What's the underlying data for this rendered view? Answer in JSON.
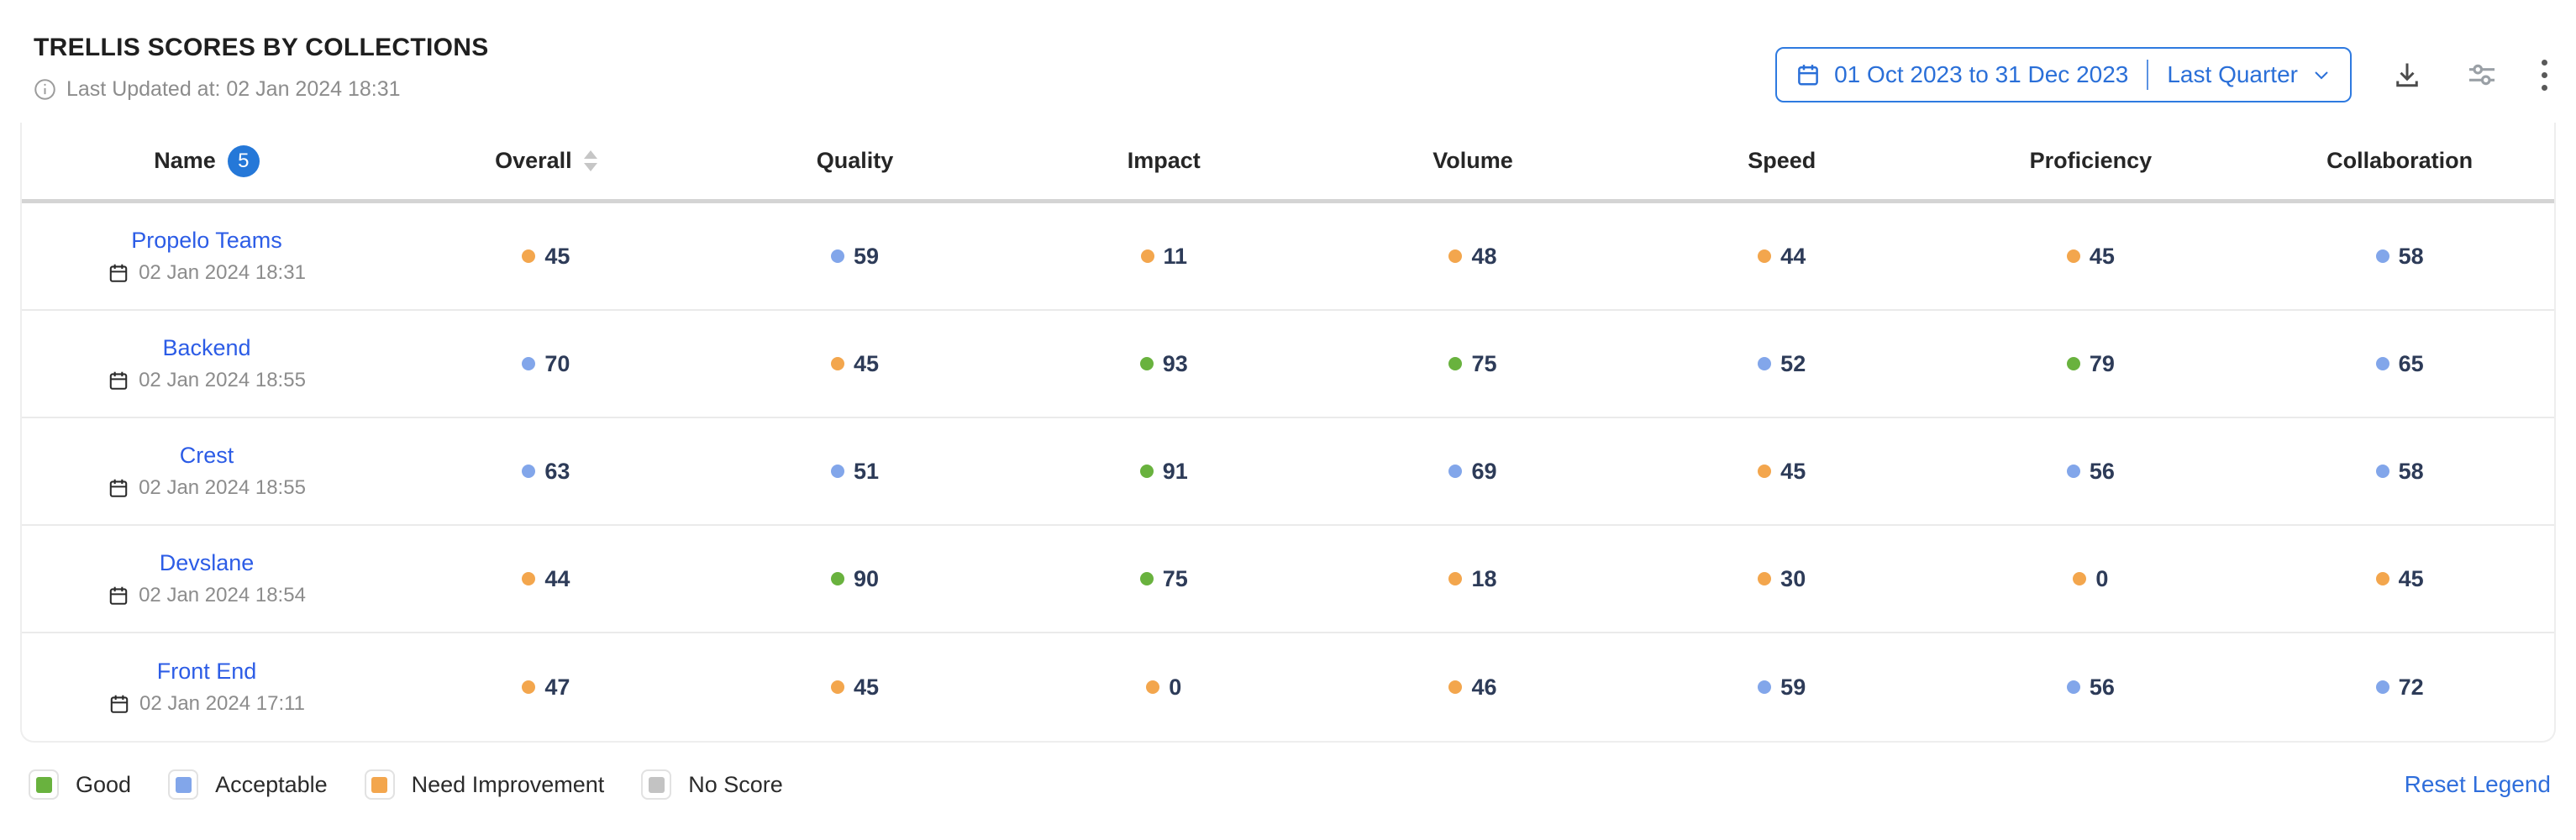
{
  "header": {
    "title": "TRELLIS SCORES BY COLLECTIONS",
    "last_updated": "Last Updated at: 02 Jan 2024 18:31",
    "date_range": {
      "range_text": "01 Oct 2023 to 31 Dec 2023",
      "preset_label": "Last Quarter"
    }
  },
  "table": {
    "columns": [
      "Name",
      "Overall",
      "Quality",
      "Impact",
      "Volume",
      "Speed",
      "Proficiency",
      "Collaboration"
    ],
    "name_count_badge": "5",
    "rows": [
      {
        "name": "Propelo Teams",
        "date": "02 Jan 2024 18:31",
        "scores": [
          {
            "value": 45,
            "status": "need_improvement"
          },
          {
            "value": 59,
            "status": "acceptable"
          },
          {
            "value": 11,
            "status": "need_improvement"
          },
          {
            "value": 48,
            "status": "need_improvement"
          },
          {
            "value": 44,
            "status": "need_improvement"
          },
          {
            "value": 45,
            "status": "need_improvement"
          },
          {
            "value": 58,
            "status": "acceptable"
          }
        ]
      },
      {
        "name": "Backend",
        "date": "02 Jan 2024 18:55",
        "scores": [
          {
            "value": 70,
            "status": "acceptable"
          },
          {
            "value": 45,
            "status": "need_improvement"
          },
          {
            "value": 93,
            "status": "good"
          },
          {
            "value": 75,
            "status": "good"
          },
          {
            "value": 52,
            "status": "acceptable"
          },
          {
            "value": 79,
            "status": "good"
          },
          {
            "value": 65,
            "status": "acceptable"
          }
        ]
      },
      {
        "name": "Crest",
        "date": "02 Jan 2024 18:55",
        "scores": [
          {
            "value": 63,
            "status": "acceptable"
          },
          {
            "value": 51,
            "status": "acceptable"
          },
          {
            "value": 91,
            "status": "good"
          },
          {
            "value": 69,
            "status": "acceptable"
          },
          {
            "value": 45,
            "status": "need_improvement"
          },
          {
            "value": 56,
            "status": "acceptable"
          },
          {
            "value": 58,
            "status": "acceptable"
          }
        ]
      },
      {
        "name": "Devslane",
        "date": "02 Jan 2024 18:54",
        "scores": [
          {
            "value": 44,
            "status": "need_improvement"
          },
          {
            "value": 90,
            "status": "good"
          },
          {
            "value": 75,
            "status": "good"
          },
          {
            "value": 18,
            "status": "need_improvement"
          },
          {
            "value": 30,
            "status": "need_improvement"
          },
          {
            "value": 0,
            "status": "need_improvement"
          },
          {
            "value": 45,
            "status": "need_improvement"
          }
        ]
      },
      {
        "name": "Front End",
        "date": "02 Jan 2024 17:11",
        "scores": [
          {
            "value": 47,
            "status": "need_improvement"
          },
          {
            "value": 45,
            "status": "need_improvement"
          },
          {
            "value": 0,
            "status": "need_improvement"
          },
          {
            "value": 46,
            "status": "need_improvement"
          },
          {
            "value": 59,
            "status": "acceptable"
          },
          {
            "value": 56,
            "status": "acceptable"
          },
          {
            "value": 72,
            "status": "acceptable"
          }
        ]
      }
    ]
  },
  "legend": {
    "items": [
      {
        "label": "Good",
        "status": "good"
      },
      {
        "label": "Acceptable",
        "status": "acceptable"
      },
      {
        "label": "Need Improvement",
        "status": "need_improvement"
      },
      {
        "label": "No Score",
        "status": "no_score"
      }
    ],
    "reset_label": "Reset Legend"
  },
  "colors": {
    "good": "#69b23e",
    "acceptable": "#82a6ea",
    "need_improvement": "#f3a64d",
    "no_score": "#c3c3c3",
    "accent_blue": "#2a6fd8",
    "link_blue": "#2c5ce6"
  }
}
